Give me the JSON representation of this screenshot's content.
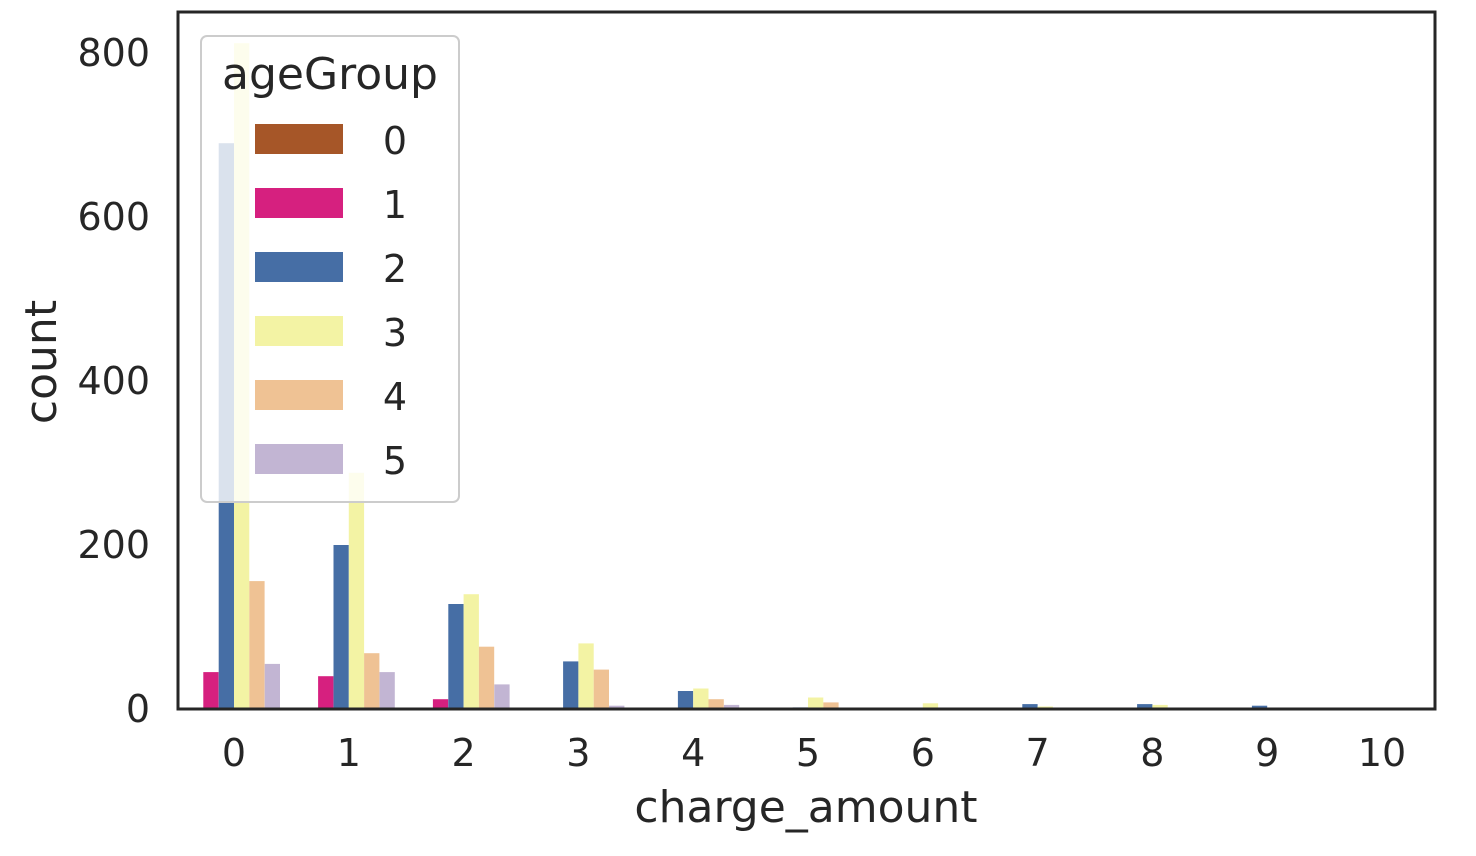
{
  "chart_data": {
    "type": "bar",
    "xlabel": "charge_amount",
    "ylabel": "count",
    "categories": [
      "0",
      "1",
      "2",
      "3",
      "4",
      "5",
      "6",
      "7",
      "8",
      "9",
      "10"
    ],
    "ylim": [
      0,
      850
    ],
    "yticks": [
      "0",
      "200",
      "400",
      "600",
      "800"
    ],
    "legend": {
      "title": "ageGroup",
      "placement": "top-left"
    },
    "grid": false,
    "series": [
      {
        "name": "0",
        "color": "#a65628",
        "values": [
          0,
          0,
          0,
          0,
          0,
          0,
          0,
          0,
          0,
          0,
          0
        ]
      },
      {
        "name": "1",
        "color": "#d6207f",
        "values": [
          45,
          40,
          12,
          0,
          0,
          0,
          0,
          0,
          0,
          0,
          0
        ]
      },
      {
        "name": "2",
        "color": "#466ea5",
        "values": [
          690,
          200,
          128,
          58,
          22,
          2,
          0,
          6,
          6,
          4,
          0
        ]
      },
      {
        "name": "3",
        "color": "#f3f3a4",
        "values": [
          812,
          288,
          140,
          80,
          25,
          14,
          7,
          3,
          5,
          0,
          0
        ]
      },
      {
        "name": "4",
        "color": "#efc294",
        "values": [
          156,
          68,
          76,
          48,
          12,
          8,
          0,
          0,
          0,
          0,
          0
        ]
      },
      {
        "name": "5",
        "color": "#c2b5d3",
        "values": [
          55,
          45,
          30,
          4,
          5,
          0,
          0,
          0,
          0,
          0,
          0
        ]
      }
    ]
  }
}
